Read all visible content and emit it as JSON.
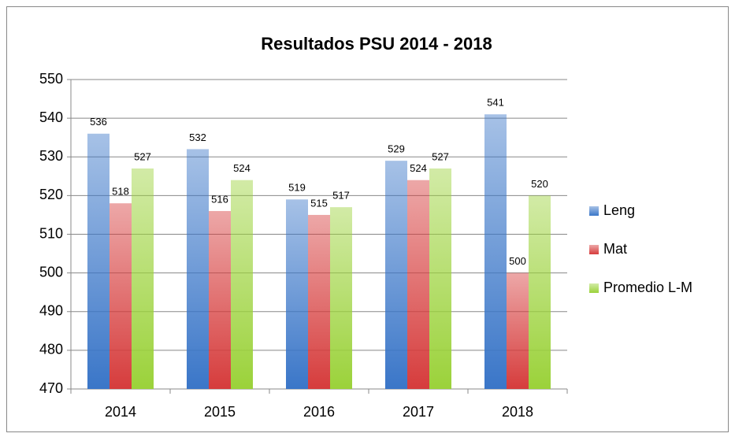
{
  "chart_data": {
    "type": "bar",
    "title": "Resultados PSU 2014 - 2018",
    "categories": [
      "2014",
      "2015",
      "2016",
      "2017",
      "2018"
    ],
    "series": [
      {
        "name": "Leng",
        "color": "#3a76c8",
        "values": [
          536,
          532,
          519,
          529,
          541
        ]
      },
      {
        "name": "Mat",
        "color": "#d63c3c",
        "values": [
          518,
          516,
          515,
          524,
          500
        ]
      },
      {
        "name": "Promedio L-M",
        "color": "#9bd23a",
        "values": [
          527,
          524,
          517,
          527,
          520
        ]
      }
    ],
    "ylim": [
      470,
      550
    ],
    "yticks": [
      470,
      480,
      490,
      500,
      510,
      520,
      530,
      540,
      550
    ],
    "grid": true,
    "legend": "right"
  }
}
